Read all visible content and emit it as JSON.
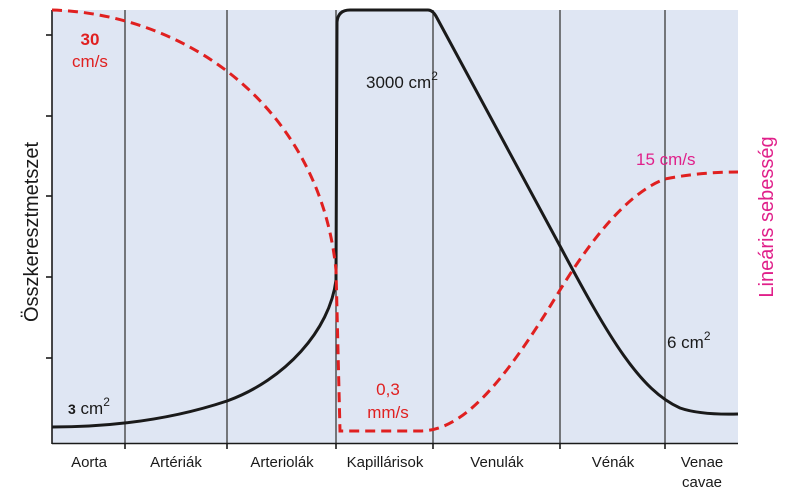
{
  "diagram": {
    "y_axis_left_title": "Összkeresztmetszet",
    "y_axis_right_title": "Lineáris sebesség",
    "segments": [
      "Aorta",
      "Artériák",
      "Arteriolák",
      "Kapillárisok",
      "Venulák",
      "Vénák",
      "Venae",
      "cavae"
    ],
    "annotations": {
      "max_velocity_value": "30",
      "max_velocity_unit": "cm/s",
      "capillary_area_value": "3000 cm",
      "capillary_area_exp": "2",
      "venous_velocity": "15 cm/s",
      "vena_cava_area_value": "6 cm",
      "vena_cava_area_exp": "2",
      "min_velocity_value": "0,3",
      "min_velocity_unit": "mm/s",
      "aorta_area_value": "3",
      "aorta_area_unit": " cm",
      "aorta_area_exp": "2"
    },
    "colors": {
      "background": "#dfe6f3",
      "cross_section_line": "#1a1a1a",
      "velocity_line": "#e02020",
      "right_axis_title": "#e0208a",
      "divider": "#3a3a3a"
    }
  }
}
